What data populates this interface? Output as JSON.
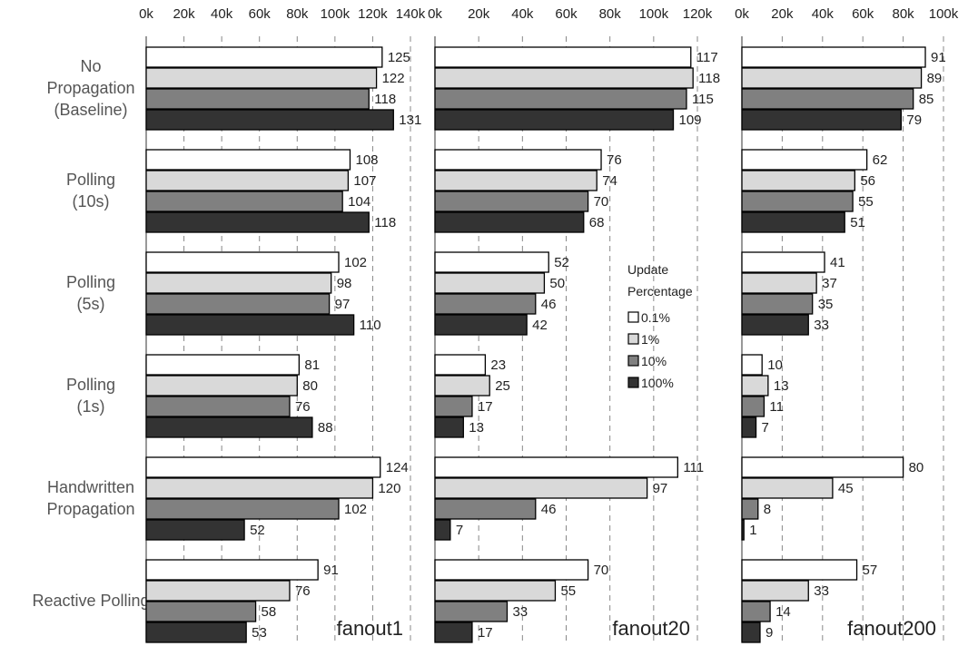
{
  "chart_data": {
    "type": "bar",
    "orientation": "horizontal",
    "categories": [
      "No Propagation (Baseline)",
      "Polling (10s)",
      "Polling (5s)",
      "Polling (1s)",
      "Handwritten Propagation",
      "Reactive Polling"
    ],
    "category_lines": [
      [
        "No",
        "Propagation",
        "(Baseline)"
      ],
      [
        "Polling",
        "(10s)"
      ],
      [
        "Polling",
        "(5s)"
      ],
      [
        "Polling",
        "(1s)"
      ],
      [
        "Handwritten",
        "Propagation"
      ],
      [
        "Reactive Polling"
      ]
    ],
    "legend": {
      "title_lines": [
        "Update",
        "Percentage"
      ],
      "entries": [
        "0.1%",
        "1%",
        "10%",
        "100%"
      ],
      "placement": "inside fanout20 panel, right"
    },
    "series_colors": [
      "#ffffff",
      "#d9d9d9",
      "#808080",
      "#333333"
    ],
    "grid": true,
    "panels": [
      {
        "title": "fanout1",
        "xlim": [
          0,
          140000
        ],
        "ticks": [
          0,
          20000,
          40000,
          60000,
          80000,
          100000,
          120000,
          140000
        ],
        "tick_labels": [
          "0k",
          "20k",
          "40k",
          "60k",
          "80k",
          "100k",
          "120k",
          "140k"
        ],
        "values": [
          [
            125,
            122,
            118,
            131
          ],
          [
            108,
            107,
            104,
            118
          ],
          [
            102,
            98,
            97,
            110
          ],
          [
            81,
            80,
            76,
            88
          ],
          [
            124,
            120,
            102,
            52
          ],
          [
            91,
            76,
            58,
            53
          ]
        ],
        "value_unit": "k"
      },
      {
        "title": "fanout20",
        "xlim": [
          0,
          120000
        ],
        "ticks": [
          0,
          20000,
          40000,
          60000,
          80000,
          100000,
          120000
        ],
        "tick_labels": [
          "0k",
          "20k",
          "40k",
          "60k",
          "80k",
          "100k",
          "120k"
        ],
        "values": [
          [
            117,
            118,
            115,
            109
          ],
          [
            76,
            74,
            70,
            68
          ],
          [
            52,
            50,
            46,
            42
          ],
          [
            23,
            25,
            17,
            13
          ],
          [
            111,
            97,
            46,
            7
          ],
          [
            70,
            55,
            33,
            17
          ]
        ],
        "value_unit": "k"
      },
      {
        "title": "fanout200",
        "xlim": [
          0,
          100000
        ],
        "ticks": [
          0,
          20000,
          40000,
          60000,
          80000,
          100000
        ],
        "tick_labels": [
          "0k",
          "20k",
          "40k",
          "60k",
          "80k",
          "100k"
        ],
        "values": [
          [
            91,
            89,
            85,
            79
          ],
          [
            62,
            56,
            55,
            51
          ],
          [
            41,
            37,
            35,
            33
          ],
          [
            10,
            13,
            11,
            7
          ],
          [
            80,
            45,
            8,
            1
          ],
          [
            57,
            33,
            14,
            9
          ]
        ],
        "value_unit": "k"
      }
    ]
  }
}
